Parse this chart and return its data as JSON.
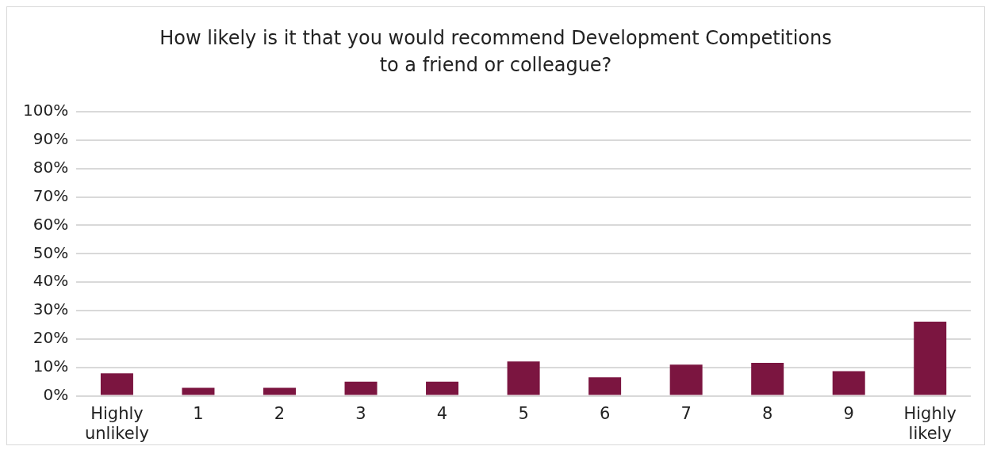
{
  "chart_data": {
    "type": "bar",
    "title": "How likely is it that you would recommend Development Competitions\nto a friend or colleague?",
    "categories": [
      "Highly unlikely",
      "1",
      "2",
      "3",
      "4",
      "5",
      "6",
      "7",
      "8",
      "9",
      "Highly likely"
    ],
    "values": [
      7.9,
      2.8,
      2.8,
      5.0,
      5.0,
      12.1,
      6.5,
      11.0,
      11.6,
      8.7,
      26.1
    ],
    "color": "#7b1540",
    "ylim": [
      0,
      100
    ],
    "yticks": [
      {
        "value": 0,
        "label": "0%"
      },
      {
        "value": 10,
        "label": "10%"
      },
      {
        "value": 20,
        "label": "20%"
      },
      {
        "value": 30,
        "label": "30%"
      },
      {
        "value": 40,
        "label": "40%"
      },
      {
        "value": 50,
        "label": "50%"
      },
      {
        "value": 60,
        "label": "60%"
      },
      {
        "value": 70,
        "label": "70%"
      },
      {
        "value": 80,
        "label": "80%"
      },
      {
        "value": 90,
        "label": "90%"
      },
      {
        "value": 100,
        "label": "100%"
      }
    ],
    "grid": "y",
    "legend": false
  }
}
